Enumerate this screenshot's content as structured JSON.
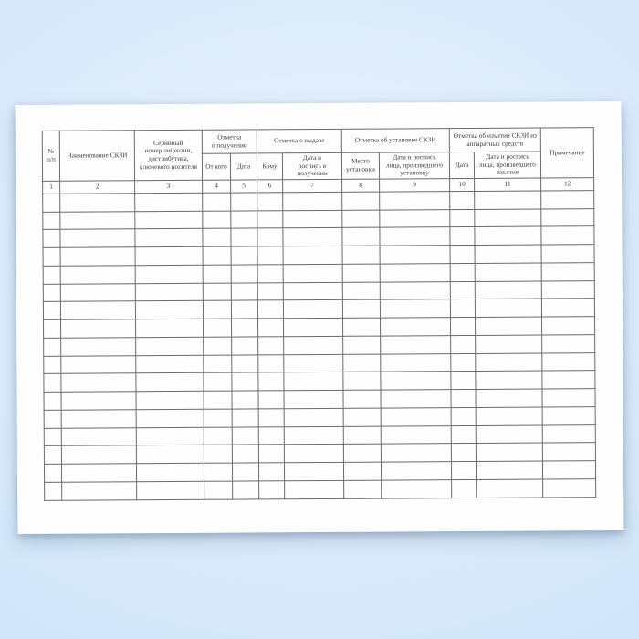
{
  "colors": {
    "background_blue": "#d0e5f9",
    "background_highlight": "#edf5fe",
    "paper_white": "#fefefe",
    "table_line_gray": "#6b6b6b",
    "text_dark": "#3d3d41"
  },
  "table": {
    "headers": {
      "num": "№\nп/п",
      "name": "Наименование СКЗИ",
      "serial": "Серийный\nномер лицензии,\nдистрибутива,\nключевого носителя",
      "group_receipt": "Отметка\nо получении",
      "from_whom": "От кого",
      "receipt_date": "Дата",
      "group_issue": "Отметка о выдаче",
      "to_whom": "Кому",
      "issue_date_sign": "Дата и\nроспись в\nполучении",
      "group_install": "Отметка об установке СКЗИ",
      "install_place": "Место\nустановки",
      "install_date_sign": "Дата и роспись\nлица, произведшего\nустановку",
      "group_removal": "Отметка об изъятии СКЗИ из\nаппаратных средств",
      "removal_date": "Дата",
      "removal_date_sign": "Дата и роспись\nлица, произведшего\nизъятие",
      "note": "Примечание"
    },
    "column_numbers": [
      "1",
      "2",
      "3",
      "4",
      "5",
      "6",
      "7",
      "8",
      "9",
      "10",
      "11",
      "12"
    ],
    "empty_row_count": 17
  }
}
